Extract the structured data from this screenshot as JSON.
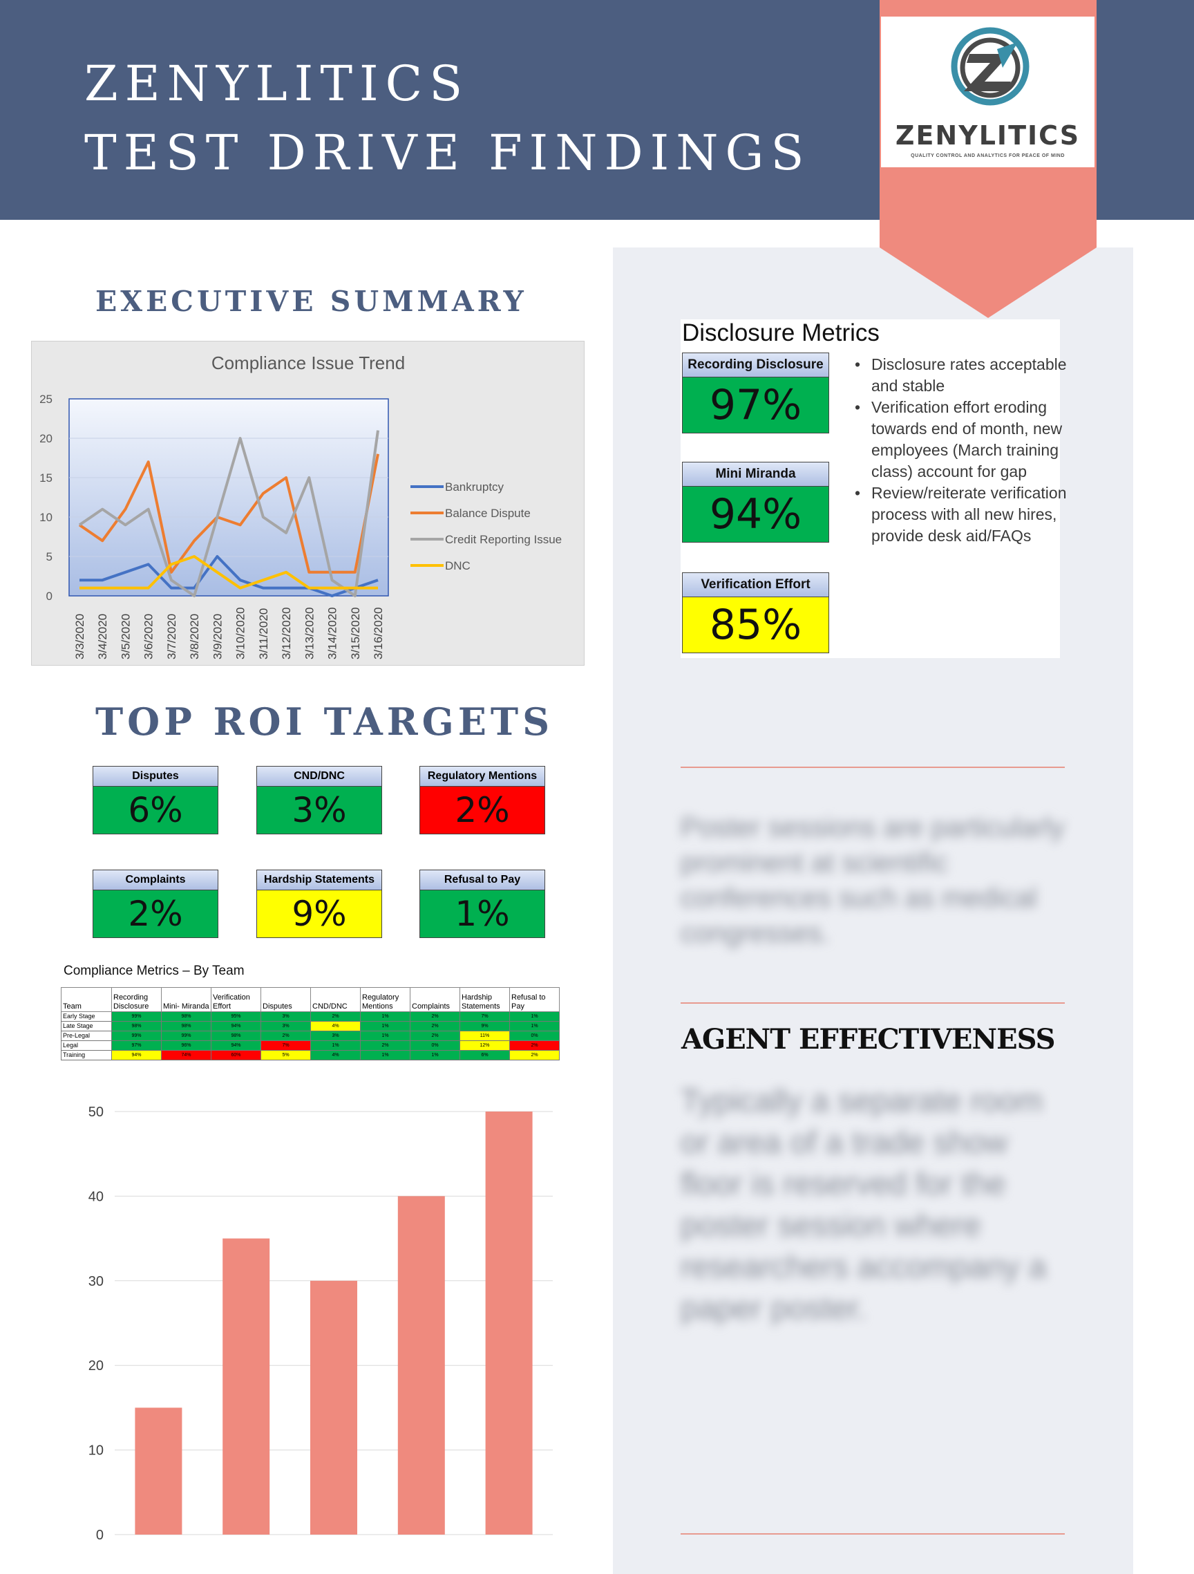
{
  "header": {
    "title_line1": "ZENYLITICS",
    "title_line2": "TEST DRIVE FINDINGS",
    "logo_word": "ZENYLITICS",
    "logo_tagline": "QUALITY CONTROL AND ANALYTICS FOR PEACE OF MIND",
    "bg_color": "#4c5e80",
    "accent_color": "#ef8a7e"
  },
  "executive_summary": {
    "heading": "EXECUTIVE SUMMARY"
  },
  "trend_chart": {
    "chart_data": {
      "type": "line",
      "title": "Compliance Issue Trend",
      "categories": [
        "3/3/2020",
        "3/4/2020",
        "3/5/2020",
        "3/6/2020",
        "3/7/2020",
        "3/8/2020",
        "3/9/2020",
        "3/10/2020",
        "3/11/2020",
        "3/12/2020",
        "3/13/2020",
        "3/14/2020",
        "3/15/2020",
        "3/16/2020"
      ],
      "ylim": [
        0,
        25
      ],
      "yticks": [
        "0",
        "5",
        "10",
        "15",
        "20",
        "25"
      ],
      "legend_position": "right",
      "series": [
        {
          "name": "Bankruptcy",
          "color": "#4472c4",
          "values": [
            2,
            2,
            3,
            4,
            1,
            1,
            5,
            2,
            1,
            1,
            1,
            0,
            1,
            2
          ]
        },
        {
          "name": "Balance Dispute",
          "color": "#ed7d31",
          "values": [
            9,
            7,
            11,
            17,
            3,
            7,
            10,
            9,
            13,
            15,
            3,
            3,
            3,
            18
          ]
        },
        {
          "name": "Credit Reporting Issue",
          "color": "#a5a5a5",
          "values": [
            9,
            11,
            9,
            11,
            2,
            0,
            10,
            20,
            10,
            8,
            15,
            2,
            0,
            21
          ]
        },
        {
          "name": "DNC",
          "color": "#ffc000",
          "values": [
            1,
            1,
            1,
            1,
            4,
            5,
            3,
            1,
            2,
            3,
            1,
            1,
            1,
            1
          ]
        }
      ]
    }
  },
  "disclosure": {
    "title": "Disclosure Metrics",
    "cards": [
      {
        "label": "Recording Disclosure",
        "value": "97%",
        "status": "green"
      },
      {
        "label": "Mini Miranda",
        "value": "94%",
        "status": "green"
      },
      {
        "label": "Verification Effort",
        "value": "85%",
        "status": "yellow"
      }
    ],
    "bullets": [
      "Disclosure rates acceptable and stable",
      "Verification effort eroding towards end of month, new employees (March training class) account for gap",
      "Review/reiterate verification process with all new hires, provide desk aid/FAQs"
    ]
  },
  "roi": {
    "heading": "TOP ROI TARGETS",
    "cards": [
      {
        "label": "Disputes",
        "value": "6%",
        "status": "green"
      },
      {
        "label": "CND/DNC",
        "value": "3%",
        "status": "green"
      },
      {
        "label": "Regulatory Mentions",
        "value": "2%",
        "status": "red"
      },
      {
        "label": "Complaints",
        "value": "2%",
        "status": "green"
      },
      {
        "label": "Hardship Statements",
        "value": "9%",
        "status": "yellow"
      },
      {
        "label": "Refusal to Pay",
        "value": "1%",
        "status": "green"
      }
    ]
  },
  "team_metrics": {
    "title": "Compliance Metrics – By Team",
    "headers": [
      "Team",
      "Recording Disclosure",
      "Mini- Miranda",
      "Verification Effort",
      "Disputes",
      "CND/DNC",
      "Regulatory Mentions",
      "Complaints",
      "Hardship Statements",
      "Refusal to Pay"
    ],
    "rows": [
      {
        "team": "Early Stage",
        "cells": [
          {
            "v": "99%",
            "s": "green"
          },
          {
            "v": "98%",
            "s": "green"
          },
          {
            "v": "95%",
            "s": "green"
          },
          {
            "v": "3%",
            "s": "green"
          },
          {
            "v": "2%",
            "s": "green"
          },
          {
            "v": "1%",
            "s": "green"
          },
          {
            "v": "2%",
            "s": "green"
          },
          {
            "v": "7%",
            "s": "green"
          },
          {
            "v": "1%",
            "s": "green"
          }
        ]
      },
      {
        "team": "Late Stage",
        "cells": [
          {
            "v": "98%",
            "s": "green"
          },
          {
            "v": "98%",
            "s": "green"
          },
          {
            "v": "94%",
            "s": "green"
          },
          {
            "v": "3%",
            "s": "green"
          },
          {
            "v": "4%",
            "s": "yellow"
          },
          {
            "v": "1%",
            "s": "green"
          },
          {
            "v": "2%",
            "s": "green"
          },
          {
            "v": "9%",
            "s": "green"
          },
          {
            "v": "1%",
            "s": "green"
          }
        ]
      },
      {
        "team": "Pre-Legal",
        "cells": [
          {
            "v": "99%",
            "s": "green"
          },
          {
            "v": "99%",
            "s": "green"
          },
          {
            "v": "98%",
            "s": "green"
          },
          {
            "v": "2%",
            "s": "green"
          },
          {
            "v": "3%",
            "s": "green"
          },
          {
            "v": "1%",
            "s": "green"
          },
          {
            "v": "2%",
            "s": "green"
          },
          {
            "v": "11%",
            "s": "yellow"
          },
          {
            "v": "0%",
            "s": "green"
          }
        ]
      },
      {
        "team": "Legal",
        "cells": [
          {
            "v": "97%",
            "s": "green"
          },
          {
            "v": "96%",
            "s": "green"
          },
          {
            "v": "94%",
            "s": "green"
          },
          {
            "v": "7%",
            "s": "red"
          },
          {
            "v": "1%",
            "s": "green"
          },
          {
            "v": "2%",
            "s": "green"
          },
          {
            "v": "0%",
            "s": "green"
          },
          {
            "v": "12%",
            "s": "yellow"
          },
          {
            "v": "2%",
            "s": "red"
          }
        ]
      },
      {
        "team": "Training",
        "cells": [
          {
            "v": "94%",
            "s": "yellow"
          },
          {
            "v": "74%",
            "s": "red"
          },
          {
            "v": "60%",
            "s": "red"
          },
          {
            "v": "5%",
            "s": "yellow"
          },
          {
            "v": "4%",
            "s": "green"
          },
          {
            "v": "1%",
            "s": "green"
          },
          {
            "v": "1%",
            "s": "green"
          },
          {
            "v": "6%",
            "s": "green"
          },
          {
            "v": "2%",
            "s": "yellow"
          }
        ]
      }
    ]
  },
  "bar_chart": {
    "chart_data": {
      "type": "bar",
      "categories": [
        "",
        "",
        "",
        "",
        ""
      ],
      "values": [
        15,
        35,
        30,
        40,
        50
      ],
      "ylim": [
        0,
        50
      ],
      "yticks": [
        "0",
        "10",
        "20",
        "30",
        "40",
        "50"
      ],
      "color": "#ef8a7e"
    }
  },
  "sidebar": {
    "poster_blurb": "Poster sessions are particularly prominent at scientific conferences such as medical congresses.",
    "agent_heading": "AGENT EFFECTIVENESS",
    "agent_blurb": "Typically a separate room or area of a trade show floor is reserved for the poster session where researchers accompany a paper poster."
  }
}
